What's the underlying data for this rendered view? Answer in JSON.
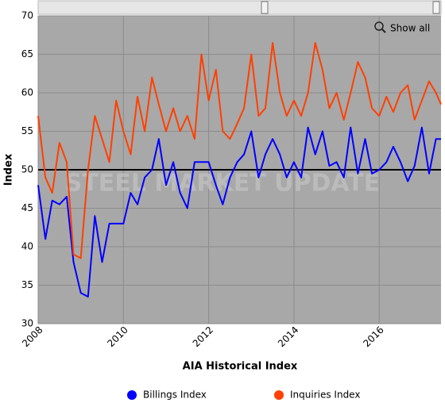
{
  "chart_data": {
    "type": "line",
    "x_label": "AIA Historical Index",
    "y_label": "Index",
    "watermark": "STEEL MARKET UPDATE",
    "zoom_button": "Show all",
    "x": [
      2008,
      2008.17,
      2008.33,
      2008.5,
      2008.67,
      2008.83,
      2009,
      2009.17,
      2009.33,
      2009.5,
      2009.67,
      2009.83,
      2010,
      2010.17,
      2010.33,
      2010.5,
      2010.67,
      2010.83,
      2011,
      2011.17,
      2011.33,
      2011.5,
      2011.67,
      2011.83,
      2012,
      2012.17,
      2012.33,
      2012.5,
      2012.67,
      2012.83,
      2013,
      2013.17,
      2013.33,
      2013.5,
      2013.67,
      2013.83,
      2014,
      2014.17,
      2014.33,
      2014.5,
      2014.67,
      2014.83,
      2015,
      2015.17,
      2015.33,
      2015.5,
      2015.67,
      2015.83,
      2016,
      2016.17,
      2016.33,
      2016.5,
      2016.67,
      2016.83,
      2017,
      2017.17,
      2017.33,
      2017.45
    ],
    "series": [
      {
        "name": "Billings Index",
        "color": "#0000ff",
        "values": [
          48,
          41,
          46,
          45.5,
          46.5,
          38,
          34,
          33.5,
          44,
          38,
          43,
          43,
          43,
          47,
          45.5,
          49,
          50,
          54,
          48,
          51,
          47,
          45,
          51,
          51,
          51,
          48,
          45.5,
          49,
          51,
          52,
          55,
          49,
          52,
          54,
          52,
          49,
          51,
          49,
          55.5,
          52,
          55,
          50.5,
          51,
          49,
          55.5,
          49.5,
          54,
          49.5,
          50,
          51,
          53,
          51,
          48.5,
          50.5,
          55.5,
          49.5,
          54,
          54
        ]
      },
      {
        "name": "Inquiries Index",
        "color": "#ff4000",
        "values": [
          57,
          49,
          47,
          53.5,
          51,
          39,
          38.5,
          50,
          57,
          54,
          51,
          59,
          55,
          52,
          59.5,
          55,
          62,
          58.5,
          55,
          58,
          55,
          57,
          54,
          65,
          59,
          63,
          55,
          54,
          56,
          58,
          65,
          57,
          58,
          66.5,
          60,
          57,
          59,
          57,
          60,
          66.5,
          63,
          58,
          60,
          56.5,
          60,
          64,
          62,
          58,
          57,
          59.5,
          57.5,
          60,
          61,
          56.5,
          59,
          61.5,
          60,
          58.5
        ]
      }
    ],
    "xlim": [
      2008,
      2017.45
    ],
    "xticks": [
      2008,
      2010,
      2012,
      2014,
      2016
    ],
    "ylim": [
      30,
      70
    ],
    "yticks": [
      30,
      35,
      40,
      45,
      50,
      55,
      60,
      65,
      70
    ],
    "reference_line": 50,
    "grid": true
  }
}
